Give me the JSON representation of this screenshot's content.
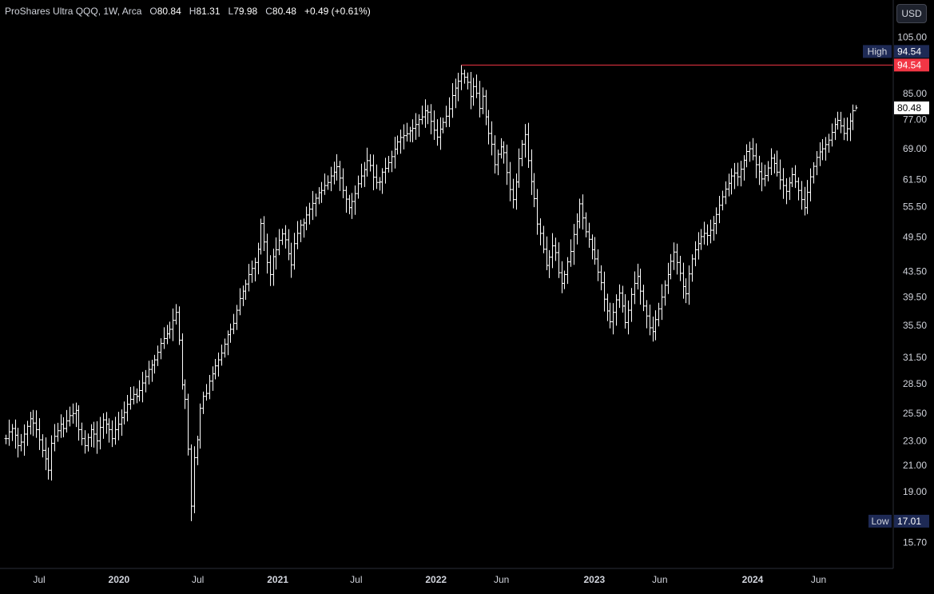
{
  "legend": {
    "symbol": "ProShares Ultra QQQ, 1W, Arca",
    "open_label": "O",
    "open": "80.84",
    "high_label": "H",
    "high": "81.31",
    "low_label": "L",
    "low": "79.98",
    "close_label": "C",
    "close": "80.48",
    "change": "+0.49 (+0.61%)"
  },
  "currency": "USD",
  "colors": {
    "background": "#000000",
    "bars": "#ffffff",
    "high_line": "#f23645",
    "high_tag": "#f23645",
    "label_bg": "#1e2a55",
    "last_price_bg": "#ffffff"
  },
  "chart_data": {
    "type": "ohlc",
    "interval": "1W",
    "y_scale": "log",
    "ylim": [
      14.5,
      112
    ],
    "y_ticks": [
      "105.00",
      "94.50",
      "85.00",
      "77.00",
      "69.00",
      "61.50",
      "55.50",
      "49.50",
      "43.50",
      "39.50",
      "35.50",
      "31.50",
      "28.50",
      "25.50",
      "23.00",
      "21.00",
      "19.00",
      "17.00",
      "15.70"
    ],
    "x_ticks": [
      {
        "label": "Jul",
        "date": "2019-07-01",
        "bold": false
      },
      {
        "label": "2020",
        "date": "2020-01-01",
        "bold": true
      },
      {
        "label": "Jul",
        "date": "2020-07-01",
        "bold": false
      },
      {
        "label": "2021",
        "date": "2021-01-01",
        "bold": true
      },
      {
        "label": "Jul",
        "date": "2021-07-01",
        "bold": false
      },
      {
        "label": "2022",
        "date": "2022-01-01",
        "bold": true
      },
      {
        "label": "Jun",
        "date": "2022-06-01",
        "bold": false
      },
      {
        "label": "2023",
        "date": "2023-01-01",
        "bold": true
      },
      {
        "label": "Jun",
        "date": "2023-06-01",
        "bold": false
      },
      {
        "label": "2024",
        "date": "2024-01-01",
        "bold": true
      },
      {
        "label": "Jun",
        "date": "2024-06-01",
        "bold": false
      }
    ],
    "start_date": "2019-04-15",
    "closes": [
      23.2,
      23.8,
      24.1,
      23.5,
      22.6,
      22.9,
      23.6,
      24.3,
      25.0,
      24.6,
      24.0,
      23.1,
      22.2,
      21.5,
      20.6,
      22.8,
      23.4,
      23.9,
      24.5,
      24.1,
      24.8,
      25.3,
      25.5,
      25.8,
      24.0,
      23.2,
      22.6,
      23.3,
      24.0,
      23.6,
      23.0,
      24.2,
      24.9,
      24.5,
      24.0,
      23.2,
      24.0,
      24.5,
      25.1,
      25.6,
      26.4,
      26.9,
      27.4,
      27.2,
      27.8,
      28.6,
      29.3,
      30.1,
      30.6,
      31.2,
      32.1,
      33.2,
      33.8,
      34.4,
      35.0,
      36.2,
      37.3,
      33.6,
      28.4,
      26.9,
      22.3,
      18.0,
      21.6,
      23.1,
      26.0,
      27.2,
      27.5,
      28.8,
      29.6,
      30.5,
      31.2,
      32.0,
      33.1,
      34.3,
      35.0,
      35.8,
      37.6,
      39.3,
      40.4,
      41.5,
      43.0,
      44.0,
      45.0,
      47.3,
      52.1,
      48.6,
      45.0,
      43.0,
      46.0,
      47.2,
      48.9,
      50.1,
      49.0,
      46.5,
      44.6,
      48.3,
      50.2,
      51.8,
      52.2,
      53.8,
      55.0,
      56.2,
      57.3,
      58.5,
      59.0,
      60.1,
      60.8,
      62.3,
      63.2,
      64.5,
      61.8,
      59.0,
      57.1,
      55.3,
      56.6,
      58.3,
      60.5,
      62.3,
      63.8,
      66.0,
      64.8,
      62.0,
      60.8,
      60.9,
      63.2,
      64.1,
      65.5,
      67.0,
      68.9,
      70.8,
      72.0,
      72.5,
      73.0,
      73.8,
      74.5,
      75.6,
      77.0,
      77.8,
      79.6,
      79.2,
      76.5,
      74.0,
      72.1,
      74.3,
      76.2,
      78.0,
      80.2,
      84.3,
      86.7,
      89.0,
      91.5,
      90.3,
      88.6,
      84.0,
      87.2,
      85.0,
      80.3,
      84.1,
      77.8,
      73.1,
      70.2,
      65.0,
      67.6,
      69.5,
      68.0,
      63.1,
      59.2,
      57.0,
      60.9,
      66.5,
      70.2,
      72.8,
      66.0,
      61.0,
      57.2,
      52.0,
      50.2,
      47.3,
      44.5,
      45.9,
      47.9,
      46.7,
      43.3,
      41.6,
      43.0,
      45.1,
      46.9,
      50.0,
      52.5,
      56.1,
      53.2,
      50.5,
      49.1,
      47.2,
      45.6,
      43.4,
      41.7,
      39.2,
      37.5,
      36.0,
      37.3,
      39.1,
      40.1,
      38.2,
      35.9,
      37.6,
      39.9,
      41.6,
      42.7,
      40.4,
      38.2,
      36.8,
      35.2,
      34.7,
      36.3,
      37.8,
      39.5,
      41.3,
      43.0,
      45.2,
      46.8,
      45.0,
      43.2,
      41.1,
      40.0,
      43.1,
      45.6,
      47.2,
      48.3,
      49.6,
      50.2,
      49.8,
      50.8,
      52.1,
      53.9,
      55.8,
      57.6,
      59.3,
      60.6,
      62.3,
      63.0,
      62.1,
      63.9,
      66.1,
      68.3,
      69.0,
      67.2,
      65.0,
      63.3,
      61.6,
      62.4,
      64.2,
      66.6,
      65.3,
      63.2,
      61.4,
      60.1,
      58.8,
      60.7,
      62.6,
      61.0,
      59.0,
      57.0,
      55.3,
      58.6,
      62.1,
      64.6,
      66.8,
      68.2,
      69.0,
      70.1,
      71.3,
      73.4,
      75.6,
      76.8,
      75.2,
      73.1,
      74.4,
      76.6,
      79.6,
      80.48
    ],
    "high": {
      "label": "High",
      "value": "94.54"
    },
    "high_line_value": "94.54",
    "last_price": "80.48",
    "low": {
      "label": "Low",
      "value": "17.01"
    }
  }
}
